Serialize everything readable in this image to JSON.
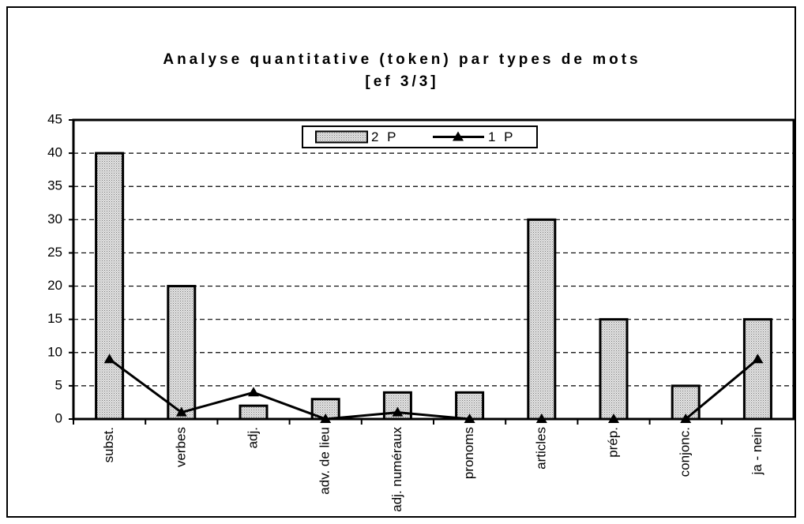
{
  "chart_data": {
    "type": "bar_line",
    "title": "Analyse quantitative (token) par types de mots",
    "subtitle": "[ef 3/3]",
    "categories": [
      "subst.",
      "verbes",
      "adj.",
      "adv. de lieu",
      "adj. numéraux",
      "pronoms",
      "articles",
      "prép.",
      "conjonc.",
      "ja - nein"
    ],
    "series": [
      {
        "name": "2 P",
        "type": "bar",
        "color": "#c8c8c8",
        "values": [
          40,
          20,
          2,
          3,
          4,
          4,
          30,
          15,
          5,
          15
        ]
      },
      {
        "name": "1 P",
        "type": "line",
        "color": "#000000",
        "values": [
          9,
          1,
          4,
          0,
          1,
          0,
          0,
          0,
          0,
          9
        ]
      }
    ],
    "ylim": [
      0,
      45
    ],
    "yticks": [
      0,
      5,
      10,
      15,
      20,
      25,
      30,
      35,
      40,
      45
    ],
    "grid": true,
    "legend": "top"
  }
}
